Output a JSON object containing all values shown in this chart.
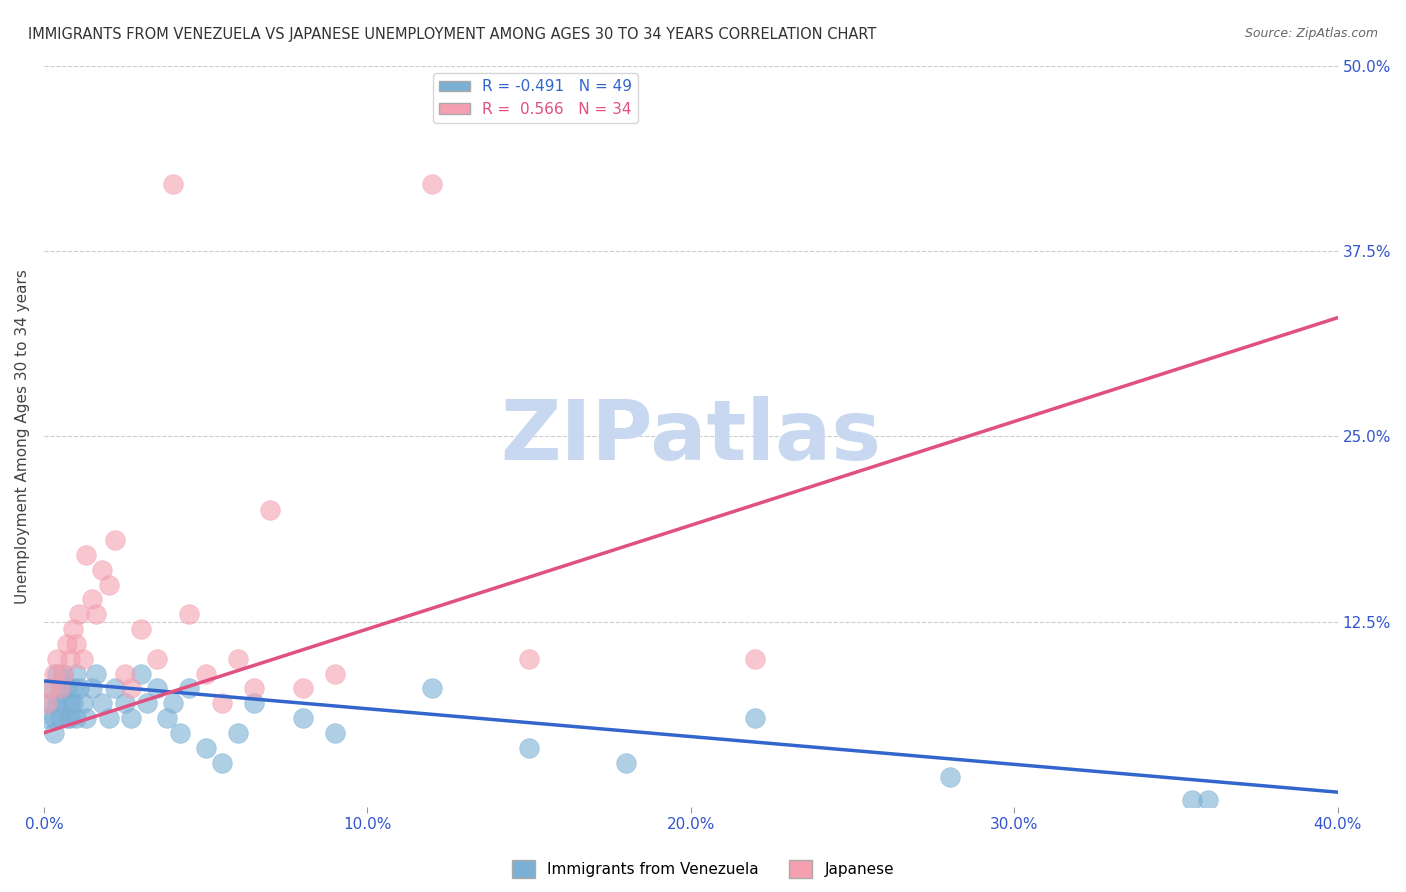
{
  "title": "IMMIGRANTS FROM VENEZUELA VS JAPANESE UNEMPLOYMENT AMONG AGES 30 TO 34 YEARS CORRELATION CHART",
  "source": "Source: ZipAtlas.com",
  "xlabel": "",
  "ylabel": "Unemployment Among Ages 30 to 34 years",
  "xlim": [
    0.0,
    0.4
  ],
  "ylim": [
    0.0,
    0.5
  ],
  "xticks": [
    0.0,
    0.1,
    0.2,
    0.3,
    0.4
  ],
  "xtick_labels": [
    "0.0%",
    "10.0%",
    "20.0%",
    "30.0%",
    "40.0%"
  ],
  "yticks_right": [
    0.0,
    0.125,
    0.25,
    0.375,
    0.5
  ],
  "ytick_labels_right": [
    "",
    "12.5%",
    "25.0%",
    "37.5%",
    "50.0%"
  ],
  "legend_blue_label": "R = -0.491   N = 49",
  "legend_pink_label": "R =  0.566   N = 34",
  "blue_color": "#7bafd4",
  "pink_color": "#f4a0b0",
  "blue_line_color": "#3366cc",
  "pink_line_color": "#e05080",
  "watermark": "ZIPatlas",
  "watermark_color": "#c8d8f0",
  "background_color": "#ffffff",
  "grid_color": "#cccccc",
  "title_color": "#333333",
  "axis_label_color": "#3355cc",
  "blue_scatter_x": [
    0.001,
    0.002,
    0.002,
    0.003,
    0.003,
    0.004,
    0.004,
    0.005,
    0.005,
    0.006,
    0.006,
    0.007,
    0.007,
    0.008,
    0.008,
    0.009,
    0.009,
    0.01,
    0.01,
    0.011,
    0.012,
    0.013,
    0.015,
    0.016,
    0.018,
    0.02,
    0.022,
    0.025,
    0.027,
    0.03,
    0.032,
    0.035,
    0.038,
    0.04,
    0.042,
    0.045,
    0.05,
    0.055,
    0.06,
    0.065,
    0.08,
    0.09,
    0.12,
    0.15,
    0.18,
    0.22,
    0.28,
    0.355,
    0.36
  ],
  "blue_scatter_y": [
    0.06,
    0.07,
    0.08,
    0.05,
    0.06,
    0.07,
    0.09,
    0.06,
    0.08,
    0.07,
    0.09,
    0.06,
    0.08,
    0.07,
    0.06,
    0.08,
    0.07,
    0.09,
    0.06,
    0.08,
    0.07,
    0.06,
    0.08,
    0.09,
    0.07,
    0.06,
    0.08,
    0.07,
    0.06,
    0.09,
    0.07,
    0.08,
    0.06,
    0.07,
    0.05,
    0.08,
    0.04,
    0.03,
    0.05,
    0.07,
    0.06,
    0.05,
    0.08,
    0.04,
    0.03,
    0.06,
    0.02,
    0.005,
    0.005
  ],
  "pink_scatter_x": [
    0.001,
    0.002,
    0.003,
    0.004,
    0.005,
    0.006,
    0.007,
    0.008,
    0.009,
    0.01,
    0.011,
    0.012,
    0.013,
    0.015,
    0.016,
    0.018,
    0.02,
    0.022,
    0.025,
    0.027,
    0.03,
    0.035,
    0.04,
    0.045,
    0.05,
    0.06,
    0.07,
    0.09,
    0.12,
    0.15,
    0.22,
    0.08,
    0.055,
    0.065
  ],
  "pink_scatter_y": [
    0.07,
    0.08,
    0.09,
    0.1,
    0.08,
    0.09,
    0.11,
    0.1,
    0.12,
    0.11,
    0.13,
    0.1,
    0.17,
    0.14,
    0.13,
    0.16,
    0.15,
    0.18,
    0.09,
    0.08,
    0.12,
    0.1,
    0.42,
    0.13,
    0.09,
    0.1,
    0.2,
    0.09,
    0.42,
    0.1,
    0.1,
    0.08,
    0.07,
    0.08
  ],
  "blue_trend_x": [
    0.0,
    0.4
  ],
  "blue_trend_y": [
    0.085,
    0.01
  ],
  "pink_trend_x": [
    0.0,
    0.4
  ],
  "pink_trend_y": [
    0.05,
    0.33
  ]
}
